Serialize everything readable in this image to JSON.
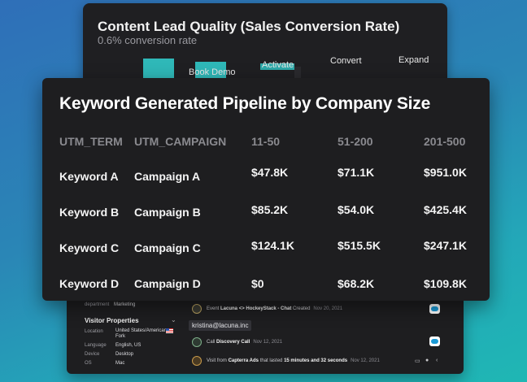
{
  "funnel": {
    "title": "Content Lead Quality (Sales Conversion Rate)",
    "subtitle": "0.6% conversion rate",
    "stages": [
      "Book Demo",
      "Activate",
      "Convert",
      "Expand"
    ]
  },
  "table": {
    "title": "Keyword Generated Pipeline by Company Size",
    "columns": [
      "UTM_TERM",
      "UTM_CAMPAIGN",
      "11-50",
      "51-200",
      "201-500"
    ],
    "rows": [
      [
        "Keyword A",
        "Campaign A",
        "$47.8K",
        "$71.1K",
        "$951.0K"
      ],
      [
        "Keyword B",
        "Campaign B",
        "$85.2K",
        "$54.0K",
        "$425.4K"
      ],
      [
        "Keyword C",
        "Campaign C",
        "$124.1K",
        "$515.5K",
        "$247.1K"
      ],
      [
        "Keyword D",
        "Campaign D",
        "$0",
        "$68.2K",
        "$109.8K"
      ]
    ]
  },
  "visitor": {
    "department_label": "department",
    "department_value": "Marketing",
    "section_title": "Visitor Properties",
    "properties": [
      {
        "label": "Location",
        "value": "United States/American",
        "value2": "Fork"
      },
      {
        "label": "Language",
        "value": "English, US"
      },
      {
        "label": "Device",
        "value": "Desktop"
      },
      {
        "label": "OS",
        "value": "Mac"
      }
    ],
    "email": "kristina@lacuna.inc",
    "events": [
      {
        "prefix": "Event ",
        "bold": "Lacuna <> HockeyStack - Chat",
        "suffix": " Created",
        "date": "Nov 20, 2021"
      },
      {
        "prefix": "Call ",
        "bold": "Discovery Call",
        "suffix": "",
        "date": "Nov 12, 2021"
      },
      {
        "prefix": "Visit from ",
        "bold": "Capterra Ads",
        "middle": " that lasted ",
        "bold2": "15 minutes and 32 seconds",
        "date": "Nov 12, 2021"
      }
    ]
  },
  "colors": {
    "accent": "#2fb8b8",
    "card_bg": "#1e1e20",
    "header_text": "#8a8a8f",
    "salesforce": "#1a9ad6"
  },
  "icons": [
    "event-icon",
    "phone-icon",
    "capterra-icon",
    "salesforce-icon",
    "chevron-down-icon",
    "desktop-icon",
    "apple-icon",
    "chevron-left-icon",
    "us-flag-icon"
  ]
}
